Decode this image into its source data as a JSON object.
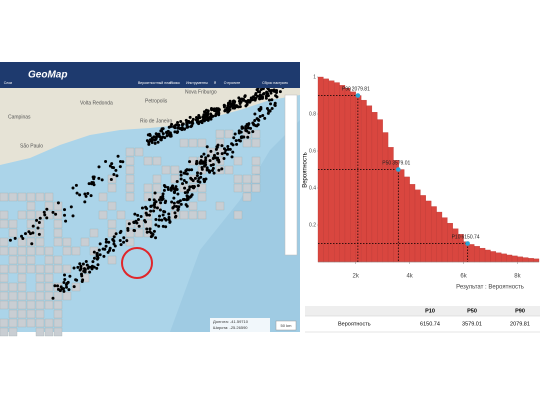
{
  "map": {
    "logo": "GeoMap",
    "toolbar": [
      "Слои",
      "Вероятностный план",
      "Поиск",
      "Инструменты",
      "Я",
      "О проекте",
      "Сброс настроек"
    ],
    "places": [
      "Campinas",
      "Volta Redonda",
      "Petropolis",
      "Nova Friburgo",
      "São Paulo",
      "Rio de Janeiro"
    ],
    "coords": [
      "Долгота: -41.59710",
      "Широта: -25.26590"
    ],
    "scale": "50 km"
  },
  "chart_data": {
    "type": "histogram",
    "ylabel": "Вероятность",
    "xlabel": "Результат : Вероятность",
    "color": "#d9463f",
    "bins": [
      600,
      800,
      1000,
      1200,
      1400,
      1600,
      1800,
      2000,
      2200,
      2400,
      2600,
      2800,
      3000,
      3200,
      3400,
      3600,
      3800,
      4000,
      4200,
      4400,
      4600,
      4800,
      5000,
      5200,
      5400,
      5600,
      5800,
      6000,
      6200,
      6400,
      6600,
      6800,
      7000,
      7200,
      7400,
      7600,
      7800,
      8000,
      8200,
      8400,
      8600,
      8800
    ],
    "values": [
      1.0,
      0.99,
      0.98,
      0.97,
      0.955,
      0.94,
      0.92,
      0.9,
      0.875,
      0.845,
      0.81,
      0.77,
      0.7,
      0.62,
      0.55,
      0.5,
      0.46,
      0.42,
      0.39,
      0.36,
      0.33,
      0.3,
      0.27,
      0.24,
      0.21,
      0.18,
      0.15,
      0.11,
      0.095,
      0.085,
      0.075,
      0.065,
      0.057,
      0.05,
      0.044,
      0.038,
      0.033,
      0.028,
      0.024,
      0.02,
      0.017
    ],
    "xlim": [
      600,
      8800
    ],
    "ylim": [
      0,
      1
    ],
    "xticks": [
      {
        "value": 2000,
        "label": "2k"
      },
      {
        "value": 4000,
        "label": "4k"
      },
      {
        "value": 6000,
        "label": "6k"
      },
      {
        "value": 8000,
        "label": "8k"
      }
    ],
    "yticks": [
      0.2,
      0.4,
      0.6,
      0.8,
      1
    ],
    "markers": [
      {
        "name": "P90",
        "x": 2079.81,
        "y": 0.9
      },
      {
        "name": "P50",
        "x": 3579.01,
        "y": 0.5
      },
      {
        "name": "P10",
        "x": 6150.74,
        "y": 0.1
      }
    ]
  },
  "table": {
    "header": [
      "P10",
      "P50",
      "P90"
    ],
    "rows": [
      {
        "label": "Вероятность",
        "cells": [
          "6150.74",
          "3579.01",
          "2079.81"
        ]
      }
    ]
  }
}
